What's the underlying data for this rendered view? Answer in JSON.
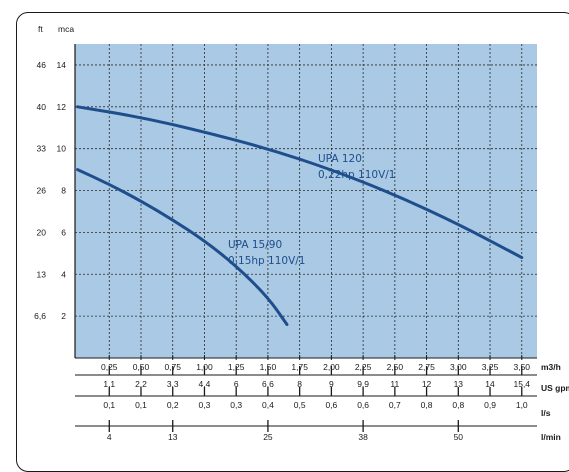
{
  "chart_data": {
    "type": "line",
    "left_units": {
      "ft": "ft",
      "mca": "mca"
    },
    "y_ticks_ft": [
      "46",
      "40",
      "33",
      "26",
      "20",
      "13",
      "6,6"
    ],
    "y_ticks_mca": [
      "14",
      "12",
      "10",
      "8",
      "6",
      "4",
      "2"
    ],
    "ylim": [
      0,
      15
    ],
    "xlim": [
      0,
      3.5
    ],
    "x_axes": [
      {
        "unit": "m3/h",
        "labels": [
          "0,25",
          "0,50",
          "0,75",
          "1,00",
          "1,25",
          "1,50",
          "1,75",
          "2,00",
          "2,25",
          "2,50",
          "2,75",
          "3,00",
          "3,25",
          "3,50"
        ]
      },
      {
        "unit": "US gpm",
        "labels": [
          "1,1",
          "2,2",
          "3,3",
          "4,4",
          "6",
          "6,6",
          "8",
          "9",
          "9,9",
          "11",
          "12",
          "13",
          "14",
          "15,4"
        ]
      },
      {
        "unit": "l/s",
        "labels": [
          "0,1",
          "0,1",
          "0,2",
          "0,3",
          "0,3",
          "0,4",
          "0,5",
          "0,6",
          "0,6",
          "0,7",
          "0,8",
          "0,8",
          "0,9",
          "1,0"
        ]
      },
      {
        "unit": "l/min",
        "labels": [
          "4",
          "13",
          "25",
          "38",
          "50"
        ],
        "positions": [
          0.25,
          0.75,
          1.5,
          2.25,
          3.0
        ]
      }
    ],
    "series": [
      {
        "name": "UPA 120",
        "subtitle": "0,22hp 110V/1",
        "color": "#1f4e8c",
        "x": [
          0,
          0.5,
          1.0,
          1.5,
          2.0,
          2.5,
          3.0,
          3.5
        ],
        "y": [
          12.0,
          11.5,
          10.8,
          10.0,
          9.0,
          7.8,
          6.4,
          4.8
        ]
      },
      {
        "name": "UPA 15/90",
        "subtitle": "0,15hp 110V/1",
        "color": "#1f4e8c",
        "x": [
          0,
          0.25,
          0.5,
          0.75,
          1.0,
          1.25,
          1.5,
          1.65
        ],
        "y": [
          9.0,
          8.3,
          7.5,
          6.6,
          5.6,
          4.4,
          2.9,
          1.6
        ]
      }
    ],
    "plot_background": "#a9c9e4",
    "grid": true
  }
}
